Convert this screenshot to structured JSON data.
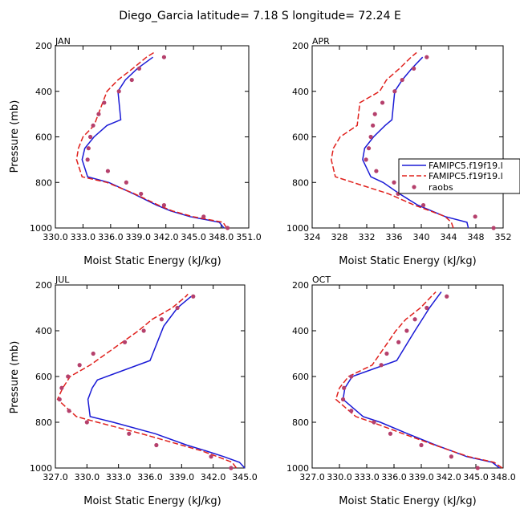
{
  "title": "Diego_Garcia   latitude= 7.18 S longitude= 72.24 E",
  "colors": {
    "model_a": "#1a1ad6",
    "model_b": "#e0201c",
    "obs": "#b5406c",
    "axis": "#000000"
  },
  "legend": [
    "FAMIPC5.f19f19.l",
    "FAMIPC5.f19f19.l",
    "raobs"
  ],
  "chart_data": [
    {
      "type": "line",
      "panel": "JAN",
      "xlabel": "Moist Static Energy (kJ/kg)",
      "ylabel": "Pressure (mb)",
      "xlim": [
        330.0,
        351.0
      ],
      "ylim": [
        1000,
        200
      ],
      "xticks": [
        330.0,
        333.0,
        336.0,
        339.0,
        342.0,
        345.0,
        348.0,
        351.0
      ],
      "xtick_labels": [
        "330.0",
        "333.0",
        "336.0",
        "339.0",
        "342.0",
        "345.0",
        "348.0",
        "351.0"
      ],
      "yticks": [
        200,
        400,
        600,
        800,
        1000
      ],
      "ytick_labels": [
        "200",
        "400",
        "600",
        "800",
        "1000"
      ],
      "series": [
        {
          "name": "FAMIPC5.f19f19.l",
          "style": "solid",
          "pressure": [
            1000,
            975,
            950,
            925,
            900,
            850,
            800,
            775,
            700,
            650,
            600,
            550,
            525,
            400,
            350,
            300,
            250
          ],
          "mse": [
            348.3,
            347.8,
            344.6,
            342.5,
            341.0,
            338.5,
            335.8,
            333.5,
            332.9,
            333.2,
            334.2,
            335.6,
            337.1,
            336.8,
            337.6,
            338.9,
            340.6
          ]
        },
        {
          "name": "FAMIPC5.f19f19.l",
          "style": "dashed",
          "pressure": [
            1000,
            975,
            950,
            925,
            900,
            850,
            800,
            775,
            700,
            650,
            600,
            550,
            400,
            350,
            300,
            250,
            230
          ],
          "mse": [
            348.6,
            348.2,
            344.9,
            342.7,
            341.2,
            338.6,
            335.6,
            332.9,
            332.3,
            332.5,
            333.0,
            334.2,
            335.6,
            336.8,
            338.4,
            339.9,
            340.7
          ]
        },
        {
          "name": "raobs",
          "style": "points",
          "pressure": [
            1000,
            950,
            900,
            850,
            800,
            750,
            700,
            650,
            600,
            550,
            500,
            450,
            400,
            350,
            300,
            250
          ],
          "mse": [
            348.7,
            346.1,
            341.8,
            339.3,
            337.7,
            335.7,
            333.5,
            333.6,
            333.8,
            334.1,
            334.7,
            335.3,
            336.9,
            338.3,
            339.1,
            341.8
          ]
        }
      ]
    },
    {
      "type": "line",
      "panel": "APR",
      "xlabel": "Moist Static Energy (kJ/kg)",
      "ylabel": "",
      "xlim": [
        324,
        352
      ],
      "ylim": [
        1000,
        200
      ],
      "xticks": [
        324,
        328,
        332,
        336,
        340,
        344,
        348,
        352
      ],
      "xtick_labels": [
        "324",
        "328",
        "332",
        "336",
        "340",
        "344",
        "348",
        "352"
      ],
      "yticks": [
        200,
        400,
        600,
        800,
        1000
      ],
      "ytick_labels": [
        "200",
        "400",
        "600",
        "800",
        "1000"
      ],
      "series": [
        {
          "name": "FAMIPC5.f19f19.l",
          "style": "solid",
          "pressure": [
            1000,
            975,
            950,
            925,
            900,
            850,
            800,
            775,
            700,
            650,
            600,
            550,
            525,
            400,
            350,
            300,
            250
          ],
          "mse": [
            346.9,
            346.7,
            343.5,
            341.5,
            339.5,
            336.8,
            334.4,
            332.6,
            331.4,
            331.7,
            333.0,
            334.7,
            335.7,
            336.1,
            337.2,
            338.6,
            340.2
          ]
        },
        {
          "name": "FAMIPC5.f19f19.l",
          "style": "dashed",
          "pressure": [
            1000,
            975,
            950,
            925,
            900,
            850,
            800,
            775,
            700,
            650,
            600,
            550,
            450,
            400,
            350,
            300,
            250,
            230
          ],
          "mse": [
            344.7,
            344.4,
            343.5,
            341.3,
            339.0,
            335.2,
            330.0,
            327.4,
            326.8,
            327.1,
            328.1,
            330.6,
            331.0,
            333.9,
            334.9,
            336.8,
            338.5,
            339.3
          ]
        },
        {
          "name": "raobs",
          "style": "points",
          "pressure": [
            1000,
            950,
            900,
            850,
            800,
            750,
            700,
            650,
            600,
            550,
            500,
            450,
            400,
            350,
            300,
            250
          ],
          "mse": [
            350.6,
            347.9,
            340.3,
            336.6,
            336.0,
            333.4,
            331.9,
            332.3,
            332.6,
            332.9,
            333.2,
            334.3,
            336.1,
            337.2,
            338.9,
            340.8
          ]
        }
      ]
    },
    {
      "type": "line",
      "panel": "JUL",
      "xlabel": "Moist Static Energy (kJ/kg)",
      "ylabel": "Pressure (mb)",
      "xlim": [
        327.0,
        345.0
      ],
      "ylim": [
        1000,
        200
      ],
      "xticks": [
        327.0,
        330.0,
        333.0,
        336.0,
        339.0,
        342.0,
        345.0
      ],
      "xtick_labels": [
        "327.0",
        "330.0",
        "333.0",
        "336.0",
        "339.0",
        "342.0",
        "345.0"
      ],
      "yticks": [
        200,
        400,
        600,
        800,
        1000
      ],
      "ytick_labels": [
        "200",
        "400",
        "600",
        "800",
        "1000"
      ],
      "series": [
        {
          "name": "FAMIPC5.f19f19.l",
          "style": "solid",
          "pressure": [
            1000,
            975,
            950,
            925,
            900,
            850,
            800,
            775,
            700,
            650,
            615,
            530,
            380,
            300,
            250
          ],
          "mse": [
            345.0,
            344.5,
            343.0,
            341.3,
            339.5,
            336.5,
            332.5,
            330.3,
            330.1,
            330.5,
            331.0,
            336.0,
            337.3,
            338.6,
            339.9
          ]
        },
        {
          "name": "FAMIPC5.f19f19.l",
          "style": "dashed",
          "pressure": [
            1000,
            975,
            950,
            925,
            900,
            850,
            800,
            775,
            700,
            650,
            600,
            550,
            400,
            350,
            300,
            250,
            240
          ],
          "mse": [
            344.2,
            343.8,
            342.4,
            340.9,
            339.0,
            335.2,
            331.0,
            329.0,
            327.2,
            327.7,
            328.4,
            330.3,
            334.9,
            336.2,
            338.1,
            339.4,
            339.6
          ]
        },
        {
          "name": "raobs",
          "style": "points",
          "pressure": [
            1000,
            950,
            900,
            850,
            800,
            750,
            700,
            650,
            600,
            550,
            500,
            450,
            400,
            350,
            300,
            250
          ],
          "mse": [
            343.7,
            341.8,
            336.6,
            334.0,
            330.0,
            328.3,
            327.4,
            327.6,
            328.2,
            329.3,
            330.6,
            333.6,
            335.4,
            337.1,
            338.6,
            340.1
          ]
        }
      ]
    },
    {
      "type": "line",
      "panel": "OCT",
      "xlabel": "Moist Static Energy (kJ/kg)",
      "ylabel": "",
      "xlim": [
        327.0,
        348.0
      ],
      "ylim": [
        1000,
        200
      ],
      "xticks": [
        327.0,
        330.0,
        333.0,
        336.0,
        339.0,
        342.0,
        345.0,
        348.0
      ],
      "xtick_labels": [
        "327.0",
        "330.0",
        "333.0",
        "336.0",
        "339.0",
        "342.0",
        "345.0",
        "348.0"
      ],
      "yticks": [
        200,
        400,
        600,
        800,
        1000
      ],
      "ytick_labels": [
        "200",
        "400",
        "600",
        "800",
        "1000"
      ],
      "series": [
        {
          "name": "FAMIPC5.f19f19.l",
          "style": "solid",
          "pressure": [
            1000,
            975,
            950,
            925,
            900,
            850,
            800,
            775,
            700,
            650,
            600,
            530,
            400,
            300,
            230
          ],
          "mse": [
            347.6,
            346.8,
            344.0,
            342.3,
            340.6,
            337.5,
            334.5,
            332.6,
            330.4,
            330.6,
            331.4,
            336.3,
            338.3,
            339.9,
            341.2
          ]
        },
        {
          "name": "FAMIPC5.f19f19.l",
          "style": "dashed",
          "pressure": [
            1000,
            975,
            950,
            925,
            900,
            850,
            800,
            775,
            700,
            650,
            600,
            550,
            400,
            350,
            300,
            250,
            230
          ],
          "mse": [
            347.9,
            347.0,
            344.2,
            342.3,
            340.5,
            337.0,
            333.6,
            331.8,
            329.6,
            330.0,
            331.0,
            333.6,
            336.2,
            337.3,
            338.9,
            340.1,
            340.6
          ]
        },
        {
          "name": "raobs",
          "style": "points",
          "pressure": [
            1000,
            950,
            900,
            850,
            800,
            750,
            700,
            650,
            600,
            550,
            500,
            450,
            400,
            350,
            300,
            250
          ],
          "mse": [
            345.2,
            342.3,
            339.0,
            335.6,
            333.8,
            331.3,
            330.4,
            330.5,
            331.3,
            334.6,
            335.2,
            336.5,
            337.4,
            338.3,
            339.6,
            341.8
          ]
        }
      ]
    }
  ]
}
